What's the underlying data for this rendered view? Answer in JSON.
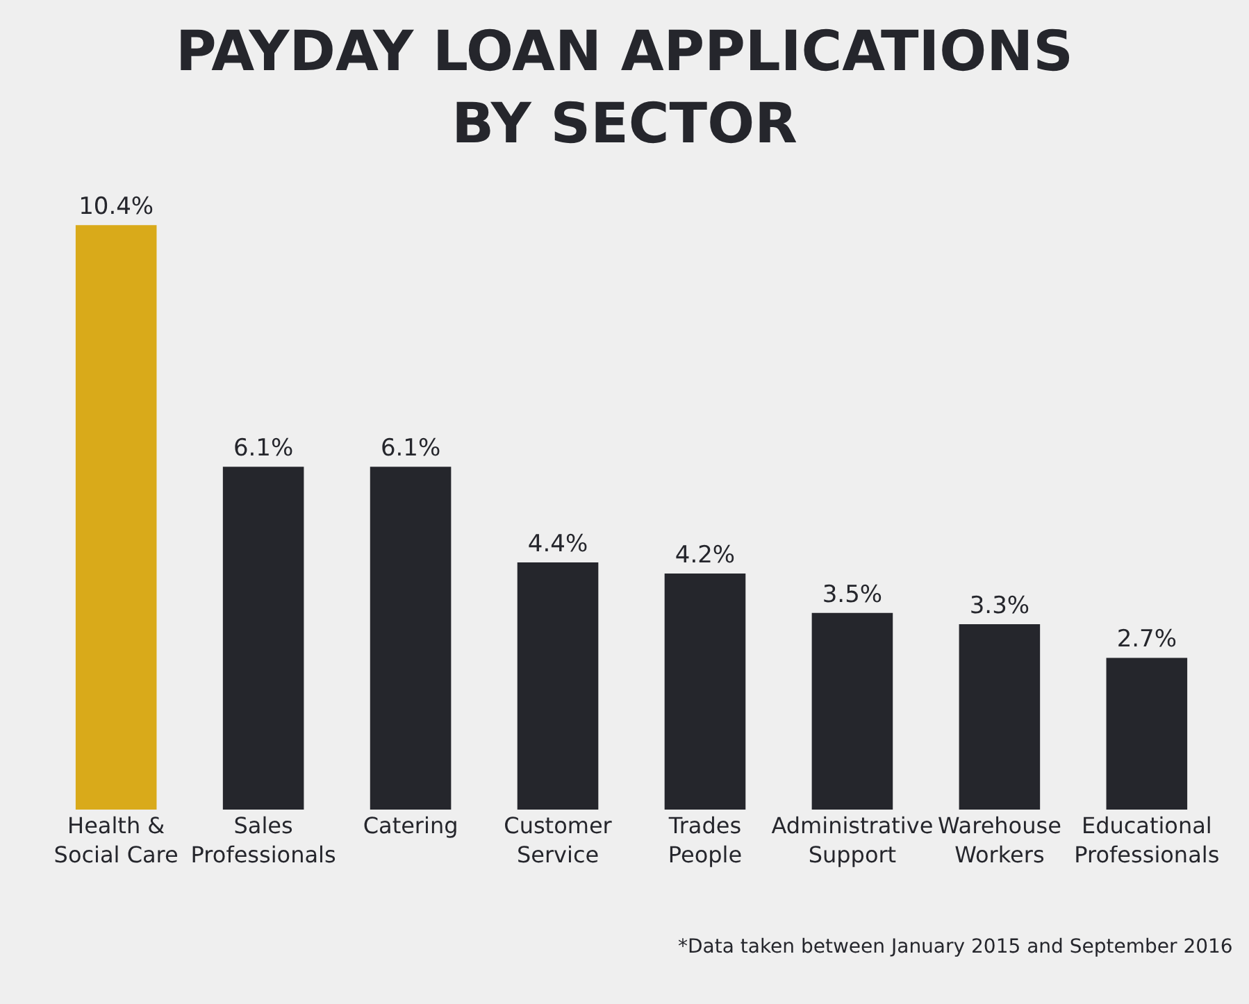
{
  "chart_data": {
    "type": "bar",
    "title": "PAYDAY LOAN APPLICATIONS BY SECTOR",
    "categories": [
      "Health & Social Care",
      "Sales Professionals",
      "Catering",
      "Customer Service",
      "Trades People",
      "Administrative Support",
      "Warehouse Workers",
      "Educational Professionals"
    ],
    "values": [
      10.4,
      6.1,
      6.1,
      4.4,
      4.2,
      3.5,
      3.3,
      2.7
    ],
    "colors": [
      "#d9aa1a",
      "#25262c",
      "#25262c",
      "#25262c",
      "#25262c",
      "#25262c",
      "#25262c",
      "#25262c"
    ],
    "value_labels": [
      "10.4%",
      "6.1%",
      "6.1%",
      "4.4%",
      "4.2%",
      "3.5%",
      "3.3%",
      "2.7%"
    ],
    "annotations": [
      "*Data taken between January 2015 and September 2016"
    ],
    "grid": false,
    "legend": false
  }
}
